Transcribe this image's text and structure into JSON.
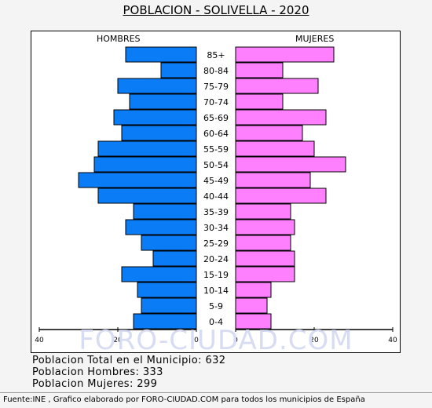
{
  "title": "POBLACION - SOLIVELLA - 2020",
  "panels": {
    "left": "HOMBRES",
    "right": "MUJERES"
  },
  "watermark": "FORO-CIUDAD.COM",
  "summary": {
    "total": "Poblacion Total en el Municipio: 632",
    "hombres": "Poblacion Hombres: 333",
    "mujeres": "Poblacion Mujeres: 299"
  },
  "source": "Fuente:INE , Grafico elaborado por FORO-CIUDAD.COM para todos los municipios de España",
  "colors": {
    "male": "#0a7cf5",
    "female": "#ff80ff",
    "frame": "#000000",
    "background": "#f4f4f4"
  },
  "chart_data": {
    "type": "bar",
    "orientation": "horizontal-population-pyramid",
    "title": "POBLACION - SOLIVELLA - 2020",
    "categories": [
      "85+",
      "80-84",
      "75-79",
      "70-74",
      "65-69",
      "60-64",
      "55-59",
      "50-54",
      "45-49",
      "40-44",
      "35-39",
      "30-34",
      "25-29",
      "20-24",
      "15-19",
      "10-14",
      "5-9",
      "0-4"
    ],
    "series": [
      {
        "name": "HOMBRES",
        "values": [
          18,
          9,
          20,
          17,
          21,
          19,
          25,
          26,
          30,
          25,
          16,
          18,
          14,
          11,
          19,
          15,
          14,
          16
        ]
      },
      {
        "name": "MUJERES",
        "values": [
          25,
          12,
          21,
          12,
          23,
          17,
          20,
          28,
          19,
          23,
          14,
          15,
          14,
          15,
          15,
          9,
          8,
          9
        ]
      }
    ],
    "xlim": [
      0,
      40
    ],
    "xticks_left": [
      "40",
      "20",
      "0"
    ],
    "xticks_right": [
      "0",
      "20",
      "40"
    ],
    "grid": false
  }
}
